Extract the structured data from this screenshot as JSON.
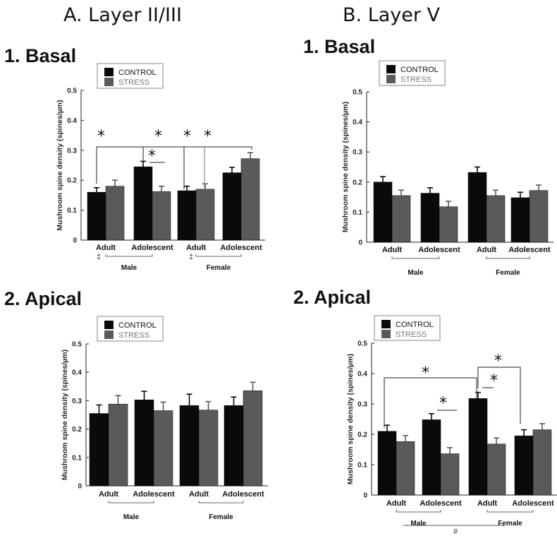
{
  "header": {
    "col_a": "A. Layer II/III",
    "col_b": "B. Layer V"
  },
  "colors": {
    "control": "#0a0a0a",
    "stress": "#5a5a5a",
    "axis": "#222222"
  },
  "chart_data": [
    {
      "id": "a1",
      "type": "bar",
      "title": "1. Basal",
      "ylabel": "Mushroom spine density (spines/µm)",
      "ylim": [
        0,
        0.5
      ],
      "yticks": [
        "0",
        "0.1",
        "0.2",
        "0.3",
        "0.4",
        "0.5"
      ],
      "categories": [
        "Adult",
        "Adolescent",
        "Adult",
        "Adolescent"
      ],
      "groups": [
        "Male",
        "Female"
      ],
      "legend": [
        "CONTROL",
        "STRESS"
      ],
      "series": [
        {
          "name": "CONTROL",
          "values": [
            0.16,
            0.245,
            0.165,
            0.225
          ],
          "errors": [
            0.015,
            0.018,
            0.015,
            0.018
          ]
        },
        {
          "name": "STRESS",
          "values": [
            0.18,
            0.162,
            0.17,
            0.272
          ],
          "errors": [
            0.02,
            0.018,
            0.018,
            0.02
          ]
        }
      ],
      "annotations": {
        "stars": [
          "*",
          "*",
          "*",
          "*",
          "*"
        ],
        "marks": [
          "‡",
          "‡"
        ]
      }
    },
    {
      "id": "b1",
      "type": "bar",
      "title": "1. Basal",
      "ylabel": "Mushroom spine density (spines/µm)",
      "ylim": [
        0,
        0.5
      ],
      "yticks": [
        "0",
        "0.1",
        "0.2",
        "0.3",
        "0.4",
        "0.5"
      ],
      "categories": [
        "Adult",
        "Adolescent",
        "Adult",
        "Adolescent"
      ],
      "groups": [
        "Male",
        "Female"
      ],
      "legend": [
        "CONTROL",
        "STRESS"
      ],
      "series": [
        {
          "name": "CONTROL",
          "values": [
            0.2,
            0.163,
            0.232,
            0.148
          ],
          "errors": [
            0.018,
            0.018,
            0.018,
            0.018
          ]
        },
        {
          "name": "STRESS",
          "values": [
            0.155,
            0.118,
            0.155,
            0.172
          ],
          "errors": [
            0.018,
            0.018,
            0.018,
            0.018
          ]
        }
      ],
      "annotations": {
        "stars": [],
        "marks": []
      }
    },
    {
      "id": "a2",
      "type": "bar",
      "title": "2. Apical",
      "ylabel": "Mushroom spine density (spines/µm)",
      "ylim": [
        0,
        0.5
      ],
      "yticks": [
        "0",
        "0.1",
        "0.2",
        "0.3",
        "0.4",
        "0.5"
      ],
      "categories": [
        "Adult",
        "Adolescent",
        "Adult",
        "Adolescent"
      ],
      "groups": [
        "Male",
        "Female"
      ],
      "legend": [
        "CONTROL",
        "STRESS"
      ],
      "series": [
        {
          "name": "CONTROL",
          "values": [
            0.255,
            0.303,
            0.283,
            0.283
          ],
          "errors": [
            0.03,
            0.03,
            0.04,
            0.03
          ]
        },
        {
          "name": "STRESS",
          "values": [
            0.288,
            0.265,
            0.267,
            0.335
          ],
          "errors": [
            0.03,
            0.03,
            0.03,
            0.03
          ]
        }
      ],
      "annotations": {
        "stars": [],
        "marks": []
      }
    },
    {
      "id": "b2",
      "type": "bar",
      "title": "2. Apical",
      "ylabel": "Mushroom spine density (spines/µm)",
      "ylim": [
        0,
        0.5
      ],
      "yticks": [
        "0",
        "0.1",
        "0.2",
        "0.3",
        "0.4",
        "0.5"
      ],
      "categories": [
        "Adult",
        "Adolescent",
        "Adult",
        "Adolescent"
      ],
      "groups": [
        "Male",
        "Female"
      ],
      "legend": [
        "CONTROL",
        "STRESS"
      ],
      "series": [
        {
          "name": "CONTROL",
          "values": [
            0.21,
            0.248,
            0.318,
            0.195
          ],
          "errors": [
            0.02,
            0.02,
            0.02,
            0.02
          ]
        },
        {
          "name": "STRESS",
          "values": [
            0.176,
            0.136,
            0.168,
            0.215
          ],
          "errors": [
            0.02,
            0.02,
            0.02,
            0.02
          ]
        }
      ],
      "annotations": {
        "stars": [
          "*",
          "*",
          "*",
          "*"
        ],
        "marks": [
          "#"
        ]
      }
    }
  ]
}
